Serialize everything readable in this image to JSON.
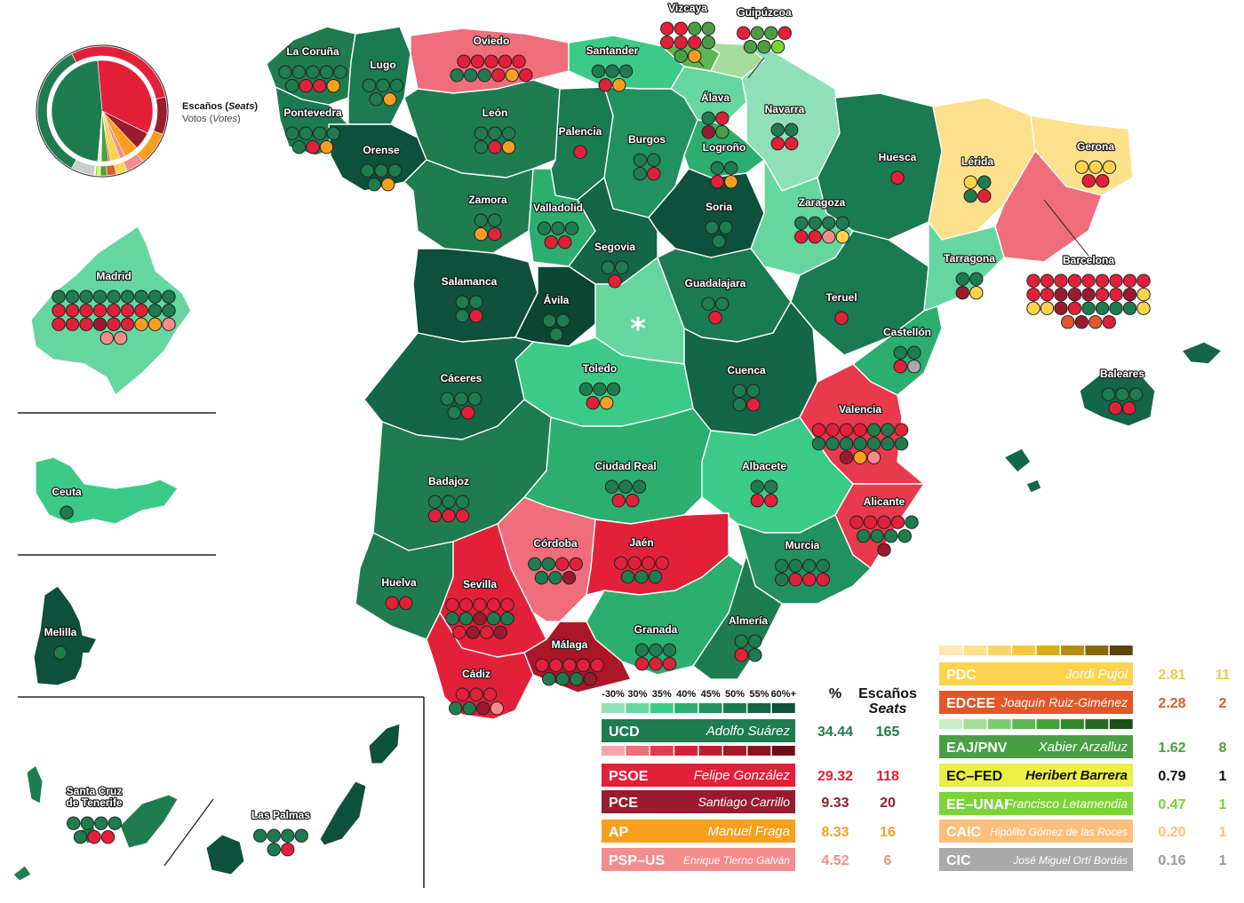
{
  "pie": {
    "seats_label_prefix": "Escaños (",
    "seats_label_em": "Seats",
    "votes_label_prefix": "Votos (",
    "votes_label_em": "Votes",
    "label_suffix": ")"
  },
  "provinces": [
    {
      "name": "La Coruña",
      "label": "La Coruña"
    },
    {
      "name": "Lugo",
      "label": "Lugo"
    },
    {
      "name": "Oviedo",
      "label": "Oviedo"
    },
    {
      "name": "Santander",
      "label": "Santander"
    },
    {
      "name": "Vizcaya",
      "label": "Vizcaya"
    },
    {
      "name": "Guipúzcoa",
      "label": "Guipúzcoa"
    },
    {
      "name": "Pontevedra",
      "label": "Pontevedra"
    },
    {
      "name": "Orense",
      "label": "Orense"
    },
    {
      "name": "León",
      "label": "León"
    },
    {
      "name": "Palencia",
      "label": "Palencia"
    },
    {
      "name": "Burgos",
      "label": "Burgos"
    },
    {
      "name": "Álava",
      "label": "Álava"
    },
    {
      "name": "Navarra",
      "label": "Navarra"
    },
    {
      "name": "Logroño",
      "label": "Logroño"
    },
    {
      "name": "Huesca",
      "label": "Huesca"
    },
    {
      "name": "Lérida",
      "label": "Lérida"
    },
    {
      "name": "Gerona",
      "label": "Gerona"
    },
    {
      "name": "Zamora",
      "label": "Zamora"
    },
    {
      "name": "Valladolid",
      "label": "Valladolid"
    },
    {
      "name": "Soria",
      "label": "Soria"
    },
    {
      "name": "Zaragoza",
      "label": "Zaragoza"
    },
    {
      "name": "Segovia",
      "label": "Segovia"
    },
    {
      "name": "Barcelona",
      "label": "Barcelona"
    },
    {
      "name": "Tarragona",
      "label": "Tarragona"
    },
    {
      "name": "Salamanca",
      "label": "Salamanca"
    },
    {
      "name": "Ávila",
      "label": "Ávila"
    },
    {
      "name": "Guadalajara",
      "label": "Guadalajara"
    },
    {
      "name": "Teruel",
      "label": "Teruel"
    },
    {
      "name": "Castellón",
      "label": "Castellón"
    },
    {
      "name": "Madrid",
      "label": "Madrid"
    },
    {
      "name": "Cáceres",
      "label": "Cáceres"
    },
    {
      "name": "Toledo",
      "label": "Toledo"
    },
    {
      "name": "Cuenca",
      "label": "Cuenca"
    },
    {
      "name": "Baleares",
      "label": "Baleares"
    },
    {
      "name": "Valencia",
      "label": "Valencia"
    },
    {
      "name": "Ciudad Real",
      "label": "Ciudad Real"
    },
    {
      "name": "Albacete",
      "label": "Albacete"
    },
    {
      "name": "Badajoz",
      "label": "Badajoz"
    },
    {
      "name": "Alicante",
      "label": "Alicante"
    },
    {
      "name": "Ceuta",
      "label": "Ceuta"
    },
    {
      "name": "Córdoba",
      "label": "Córdoba"
    },
    {
      "name": "Jaén",
      "label": "Jaén"
    },
    {
      "name": "Murcia",
      "label": "Murcia"
    },
    {
      "name": "Huelva",
      "label": "Huelva"
    },
    {
      "name": "Sevilla",
      "label": "Sevilla"
    },
    {
      "name": "Melilla",
      "label": "Melilla"
    },
    {
      "name": "Granada",
      "label": "Granada"
    },
    {
      "name": "Almería",
      "label": "Almería"
    },
    {
      "name": "Málaga",
      "label": "Málaga"
    },
    {
      "name": "Cádiz",
      "label": "Cádiz"
    },
    {
      "name": "Santa Cruz de Tenerife",
      "label": "Santa Cruz",
      "label2": "de Tenerife"
    },
    {
      "name": "Las Palmas",
      "label": "Las Palmas"
    }
  ],
  "madrid_marker": "*",
  "scale_labels": [
    "-30%",
    "30%",
    "35%",
    "40%",
    "45%",
    "50%",
    "55%",
    "60%+"
  ],
  "headers": {
    "pct": "%",
    "seats": "Escaños",
    "seats_en": "Seats"
  },
  "parties_left": [
    {
      "abbr": "UCD",
      "leader": "Adolfo Suárez",
      "pct": "34.44",
      "seats": "165",
      "color": "#1e7c4e",
      "text_color": "#1e7c4e"
    },
    {
      "abbr": "PSOE",
      "leader": "Felipe González",
      "pct": "29.32",
      "seats": "118",
      "color": "#e3203a",
      "text_color": "#e3203a"
    },
    {
      "abbr": "PCE",
      "leader": "Santiago Carrillo",
      "pct": "9.33",
      "seats": "20",
      "color": "#9a1b30",
      "text_color": "#9a1b30"
    },
    {
      "abbr": "AP",
      "leader": "Manuel Fraga",
      "pct": "8.33",
      "seats": "16",
      "color": "#f7a01e",
      "text_color": "#f7a01e"
    },
    {
      "abbr": "PSP–US",
      "leader": "Enrique Tierno Galván",
      "pct": "4.52",
      "seats": "6",
      "color": "#f48c8c",
      "text_color": "#f48c8c"
    }
  ],
  "parties_right": [
    {
      "abbr": "PDC",
      "leader": "Jordi Pujol",
      "pct": "2.81",
      "seats": "11",
      "color": "#ffd34d",
      "text_color": "#f4c84a"
    },
    {
      "abbr": "EDCEE",
      "leader": "Joaquín Ruiz-Giménez",
      "pct": "2.28",
      "seats": "2",
      "color": "#e2572a",
      "text_color": "#e2572a"
    },
    {
      "abbr": "EAJ/PNV",
      "leader": "Xabier Arzalluz",
      "pct": "1.62",
      "seats": "8",
      "color": "#4a9f43",
      "text_color": "#4a9f43"
    },
    {
      "abbr": "EC–FED",
      "leader": "Heribert Barrera",
      "pct": "0.79",
      "seats": "1",
      "color": "#ecef45",
      "text_color": "#111111"
    },
    {
      "abbr": "EE–UNAI",
      "leader": "Francisco Letamendia",
      "pct": "0.47",
      "seats": "1",
      "color": "#7ad436",
      "text_color": "#7ad436"
    },
    {
      "abbr": "CAIC",
      "leader": "Hipólito Gómez de las Roces",
      "pct": "0.20",
      "seats": "1",
      "color": "#f9c07d",
      "text_color": "#f9c07d"
    },
    {
      "abbr": "CIC",
      "leader": "José Miguel Ortí Bordás",
      "pct": "0.16",
      "seats": "1",
      "color": "#aaaaaa",
      "text_color": "#999999"
    }
  ],
  "colors": {
    "ucd_scale": [
      "#8fe0b7",
      "#66d69f",
      "#3ccb87",
      "#2bae6e",
      "#229160",
      "#1a7a52",
      "#136647",
      "#0d503b"
    ],
    "psoe_scale": [
      "#f7a4ac",
      "#f06d7b",
      "#e8394d",
      "#db1e36",
      "#c51a30",
      "#ac1628",
      "#8f1121",
      "#6f0c1a"
    ],
    "pdc_scale": [
      "#fbe9b1",
      "#fde08b",
      "#fcd664",
      "#f6c93a",
      "#d9ac1e",
      "#b58c15",
      "#8a6a0e",
      "#5a4508"
    ],
    "pnv_scale": [
      "#c9ebc4",
      "#a6dc9c",
      "#7fcb74",
      "#5db653",
      "#46a03e",
      "#35872e",
      "#276b22",
      "#1a4f16"
    ]
  }
}
